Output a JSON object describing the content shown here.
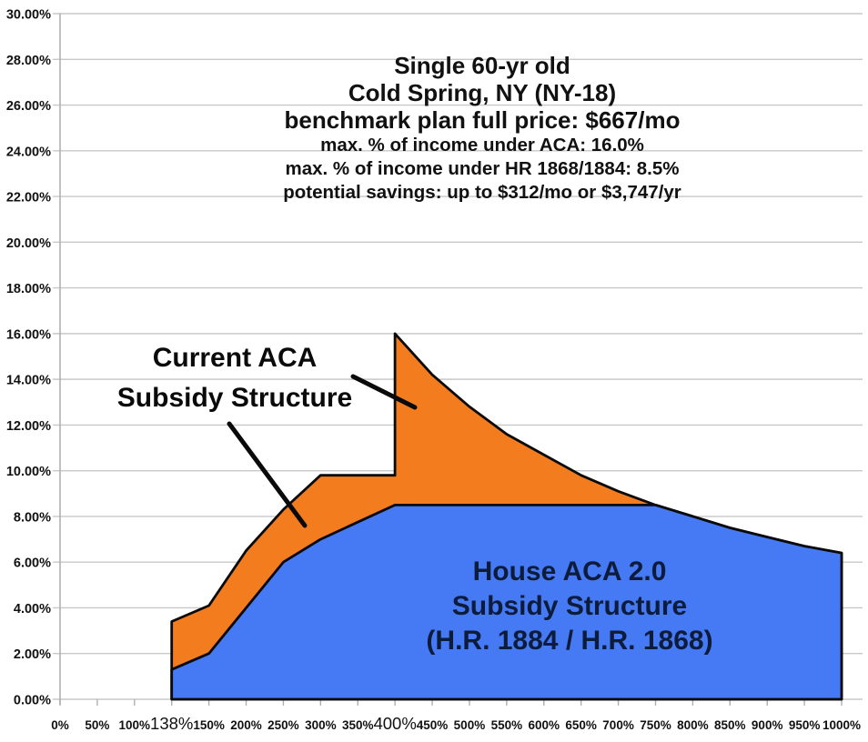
{
  "title_block": {
    "lines_large": [
      "Single 60-yr old",
      "Cold Spring, NY (NY-18)",
      "benchmark plan full price: $667/mo"
    ],
    "lines_small": [
      "max. % of income under ACA: 16.0%",
      "max. % of income under HR 1868/1884: 8.5%",
      "potential savings: up to $312/mo or $3,747/yr"
    ]
  },
  "chart_data": {
    "type": "area",
    "title": "Single 60-yr old, Cold Spring, NY (NY-18): % of income paid for benchmark plan by income (% FPL)",
    "xlabel": "",
    "ylabel": "",
    "x_axis": {
      "categories": [
        "0%",
        "50%",
        "100%",
        "138%",
        "150%",
        "200%",
        "250%",
        "300%",
        "350%",
        "400%",
        "450%",
        "500%",
        "550%",
        "600%",
        "650%",
        "700%",
        "750%",
        "800%",
        "850%",
        "900%",
        "950%",
        "1000%"
      ],
      "emphasized_categories": [
        "138%",
        "400%"
      ]
    },
    "y_axis": {
      "min": 0,
      "max": 30,
      "step": 2,
      "tick_labels": [
        "0.00%",
        "2.00%",
        "4.00%",
        "6.00%",
        "8.00%",
        "10.00%",
        "12.00%",
        "14.00%",
        "16.00%",
        "18.00%",
        "20.00%",
        "22.00%",
        "24.00%",
        "26.00%",
        "28.00%",
        "30.00%"
      ],
      "grid": true
    },
    "legend_position": "none",
    "series": [
      {
        "name": "Current ACA Subsidy Structure",
        "color": "#F37D1E",
        "outline_color": "#0a0a0a",
        "points": [
          [
            "138%",
            3.4
          ],
          [
            "150%",
            4.1
          ],
          [
            "200%",
            6.5
          ],
          [
            "250%",
            8.3
          ],
          [
            "300%",
            9.8
          ],
          [
            "350%",
            9.8
          ],
          [
            "400%",
            9.8
          ],
          [
            "400%",
            16.0
          ],
          [
            "450%",
            14.2
          ],
          [
            "500%",
            12.8
          ],
          [
            "550%",
            11.6
          ],
          [
            "600%",
            10.7
          ],
          [
            "650%",
            9.8
          ],
          [
            "700%",
            9.1
          ],
          [
            "750%",
            8.5
          ],
          [
            "800%",
            8.0
          ],
          [
            "850%",
            7.5
          ],
          [
            "900%",
            7.1
          ],
          [
            "950%",
            6.7
          ],
          [
            "1000%",
            6.4
          ]
        ]
      },
      {
        "name": "House ACA 2.0 Subsidy Structure (H.R. 1884 / H.R. 1868)",
        "color": "#4679F4",
        "outline_color": "#0a0a0a",
        "points": [
          [
            "138%",
            1.3
          ],
          [
            "150%",
            2.0
          ],
          [
            "200%",
            4.0
          ],
          [
            "250%",
            6.0
          ],
          [
            "300%",
            7.0
          ],
          [
            "350%",
            7.75
          ],
          [
            "400%",
            8.5
          ],
          [
            "450%",
            8.5
          ],
          [
            "500%",
            8.5
          ],
          [
            "550%",
            8.5
          ],
          [
            "600%",
            8.5
          ],
          [
            "650%",
            8.5
          ],
          [
            "700%",
            8.5
          ],
          [
            "750%",
            8.5
          ],
          [
            "800%",
            8.0
          ],
          [
            "850%",
            7.5
          ],
          [
            "900%",
            7.1
          ],
          [
            "950%",
            6.7
          ],
          [
            "1000%",
            6.4
          ]
        ]
      }
    ],
    "annotations": {
      "aca_label": {
        "lines": [
          "Current ACA",
          "Subsidy Structure"
        ],
        "color": "#0a0a0a"
      },
      "house_label": {
        "lines": [
          "House ACA 2.0",
          "Subsidy Structure",
          "(H.R. 1884 / H.R. 1868)"
        ],
        "color": "#0d1c3a"
      }
    },
    "colors": {
      "grid": "#c8c8c8",
      "axis": "#b0b0b0",
      "label_text": "#111111",
      "background": "#ffffff"
    }
  }
}
